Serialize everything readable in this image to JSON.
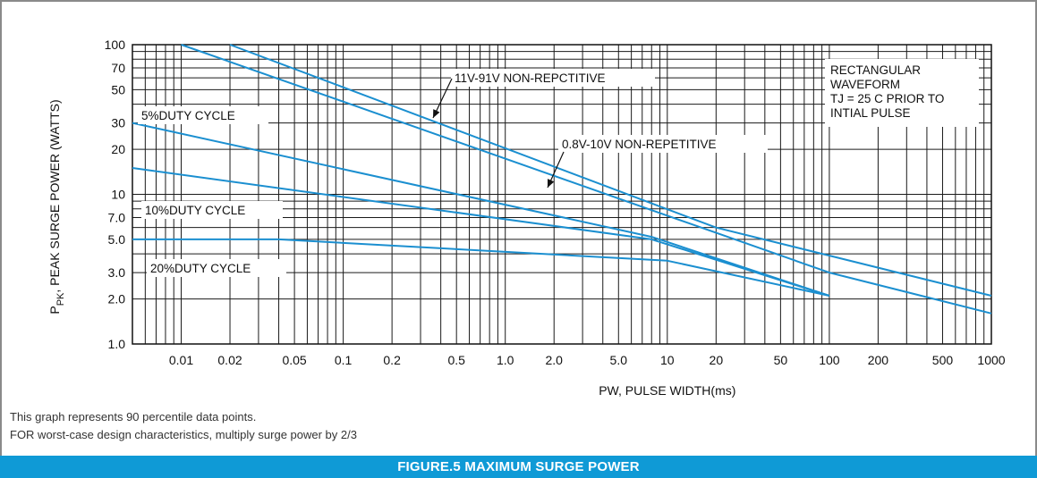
{
  "chart_data": {
    "type": "line",
    "xscale": "log",
    "yscale": "log",
    "xlim": [
      0.005,
      1000
    ],
    "ylim": [
      1.0,
      100
    ],
    "xlabel": "PW, PULSE WIDTH(ms)",
    "ylabel_main": "P",
    "ylabel_sub": "PK",
    "ylabel_rest": ", PEAK SURGE POWER (WATTS)",
    "grid": true,
    "x_ticks": [
      {
        "v": 0.01,
        "label": "0.01"
      },
      {
        "v": 0.02,
        "label": "0.02"
      },
      {
        "v": 0.05,
        "label": "0.05"
      },
      {
        "v": 0.1,
        "label": "0.1"
      },
      {
        "v": 0.2,
        "label": "0.2"
      },
      {
        "v": 0.5,
        "label": "0.5"
      },
      {
        "v": 1,
        "label": "1.0"
      },
      {
        "v": 2,
        "label": "2.0"
      },
      {
        "v": 5,
        "label": "5.0"
      },
      {
        "v": 10,
        "label": "10"
      },
      {
        "v": 20,
        "label": "20"
      },
      {
        "v": 50,
        "label": "50"
      },
      {
        "v": 100,
        "label": "100"
      },
      {
        "v": 200,
        "label": "200"
      },
      {
        "v": 500,
        "label": "500"
      },
      {
        "v": 1000,
        "label": "1000"
      }
    ],
    "y_ticks": [
      {
        "v": 1,
        "label": "1.0"
      },
      {
        "v": 2,
        "label": "2.0"
      },
      {
        "v": 3,
        "label": "3.0"
      },
      {
        "v": 5,
        "label": "5.0"
      },
      {
        "v": 7,
        "label": "7.0"
      },
      {
        "v": 10,
        "label": "10"
      },
      {
        "v": 20,
        "label": "20"
      },
      {
        "v": 30,
        "label": "30"
      },
      {
        "v": 50,
        "label": "50"
      },
      {
        "v": 70,
        "label": "70"
      },
      {
        "v": 100,
        "label": "100"
      }
    ],
    "line_color": "#1b8fd0",
    "series": [
      {
        "name": "11V-91V NON-REPCTITIVE",
        "points": [
          [
            0.02,
            100
          ],
          [
            20,
            6
          ],
          [
            1000,
            2.1
          ]
        ]
      },
      {
        "name": "0.8V-10V NON-REPETITIVE",
        "points": [
          [
            0.01,
            100
          ],
          [
            100,
            3.0
          ],
          [
            1000,
            1.6
          ]
        ]
      },
      {
        "name": "5%DUTY CYCLE",
        "points": [
          [
            0.005,
            30
          ],
          [
            8,
            5.2
          ],
          [
            100,
            2.1
          ]
        ]
      },
      {
        "name": "10%DUTY CYCLE",
        "points": [
          [
            0.005,
            15
          ],
          [
            8,
            5.0
          ],
          [
            100,
            2.1
          ]
        ]
      },
      {
        "name": "20%DUTY CYCLE",
        "points": [
          [
            0.005,
            5.0
          ],
          [
            0.04,
            5.0
          ],
          [
            10,
            3.6
          ],
          [
            100,
            2.1
          ]
        ]
      }
    ],
    "annotation": [
      "RECTANGULAR",
      "WAVEFORM",
      "TJ = 25 C PRIOR TO",
      "INTIAL PULSE"
    ]
  },
  "notes": [
    "This graph represents 90 percentile data points.",
    "FOR worst-case design characteristics, multiply surge power by 2/3"
  ],
  "caption": "FIGURE.5 MAXIMUM SURGE POWER"
}
